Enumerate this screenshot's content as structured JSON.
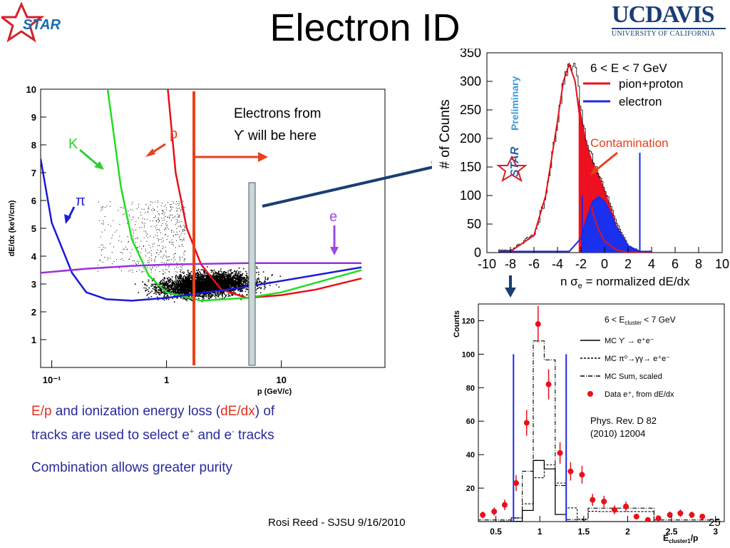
{
  "slide": {
    "title": "Electron ID",
    "footer": "Rosi Reed - SJSU 9/16/2010",
    "page_number": "25",
    "logo_star": "STAR",
    "logo_ucdavis_main": "UCDAVIS",
    "logo_ucdavis_sub": "UNIVERSITY OF CALIFORNIA",
    "text": {
      "ep": "E/p",
      "and_ion": " and ionization energy loss (",
      "dedx": "dE/dx",
      "close_of": ") of",
      "line2a": "tracks are used to select e",
      "line2b": " and e",
      "line2c": " tracks",
      "plus": "+",
      "minus": "-",
      "combination": "Combination allows greater purity"
    }
  },
  "plot1": {
    "ylabel": "dE/dx (keV/cm)",
    "xlabel": "p (GeV/c)",
    "yticks": [
      "1",
      "2",
      "3",
      "4",
      "5",
      "6",
      "7",
      "8",
      "9",
      "10"
    ],
    "xticks": [
      "10⁻¹",
      "1",
      "10"
    ],
    "annotation_upsilon_l1": "Electrons from",
    "annotation_upsilon_l2": "ϒ will be here",
    "label_p": "p",
    "label_K": "K",
    "label_pi": "π",
    "label_e": "e"
  },
  "plot2": {
    "ylabel": "# of Counts",
    "xlabel_prefix": "n σ",
    "xlabel_sub": "e",
    "xlabel_suffix": " = normalized dE/dx",
    "yticks": [
      "0",
      "50",
      "100",
      "150",
      "200",
      "250",
      "300",
      "350"
    ],
    "xticks": [
      "-10",
      "-8",
      "-6",
      "-4",
      "-2",
      "0",
      "2",
      "4",
      "6",
      "8",
      "10"
    ],
    "legend_title": "6 < E < 7 GeV",
    "legend_items": [
      "pion+proton",
      "electron"
    ],
    "preliminary": "Preliminary",
    "star": "STAR",
    "contamination": "Contamination"
  },
  "plot3": {
    "ylabel": "Counts",
    "xlabel_main": "E",
    "xlabel_sub": "cluster1",
    "xlabel_tail": "/p",
    "yticks": [
      "20",
      "40",
      "60",
      "80",
      "100",
      "120"
    ],
    "xticks": [
      "0.5",
      "1",
      "1.5",
      "2",
      "2.5",
      "3"
    ],
    "legend_title_main": "6 < E",
    "legend_title_sub": "cluster",
    "legend_title_tail": " < 7 GeV",
    "legend_items": [
      "MC ϒ → e⁺e⁻",
      "MC π⁰→γγ→ e⁺e⁻",
      "MC Sum, scaled",
      "Data e⁺, from dE/dx"
    ],
    "reference_l1": "Phys. Rev. D 82",
    "reference_l2": "(2010) 12004"
  },
  "chart_data": [
    {
      "type": "scatter",
      "title": "",
      "xlabel": "p (GeV/c)",
      "ylabel": "dE/dx (keV/cm)",
      "xscale": "log",
      "xlim": [
        0.08,
        80
      ],
      "ylim": [
        0,
        10
      ],
      "series": [
        {
          "name": "p",
          "x": [
            1.0,
            1.2,
            1.5,
            2.0,
            3.0,
            5.0,
            10,
            20,
            50
          ],
          "y": [
            10.5,
            7.0,
            5.0,
            3.7,
            2.8,
            2.5,
            2.6,
            2.8,
            3.2
          ]
        },
        {
          "name": "K",
          "x": [
            0.3,
            0.4,
            0.5,
            0.7,
            1.0,
            2.0,
            5.0,
            10,
            50
          ],
          "y": [
            10.3,
            6.5,
            4.6,
            3.3,
            2.7,
            2.4,
            2.5,
            2.7,
            3.5
          ]
        },
        {
          "name": "π",
          "x": [
            0.08,
            0.1,
            0.15,
            0.2,
            0.3,
            0.5,
            1.0,
            5.0,
            50
          ],
          "y": [
            7.5,
            5.2,
            3.4,
            2.7,
            2.45,
            2.4,
            2.5,
            2.9,
            3.6
          ]
        },
        {
          "name": "e",
          "x": [
            0.08,
            0.2,
            0.5,
            1,
            5,
            50
          ],
          "y": [
            3.4,
            3.55,
            3.65,
            3.7,
            3.75,
            3.75
          ]
        }
      ]
    },
    {
      "type": "bar",
      "title": "6 < E < 7 GeV",
      "xlabel": "n σe = normalized dE/dx",
      "ylabel": "# of Counts",
      "xlim": [
        -10,
        10
      ],
      "ylim": [
        0,
        350
      ],
      "series": [
        {
          "name": "pion+proton",
          "x": [
            -8,
            -6,
            -5,
            -4,
            -3.5,
            -3,
            -2.5,
            -2,
            -1.5,
            -1,
            -0.5,
            0,
            1,
            2
          ],
          "y": [
            2,
            30,
            100,
            230,
            300,
            330,
            300,
            220,
            130,
            70,
            40,
            20,
            5,
            0
          ]
        },
        {
          "name": "electron",
          "x": [
            -3,
            -2,
            -1.5,
            -1,
            -0.5,
            0,
            0.5,
            1,
            2,
            3
          ],
          "y": [
            2,
            25,
            60,
            90,
            98,
            90,
            70,
            45,
            12,
            2
          ]
        }
      ]
    },
    {
      "type": "bar",
      "title": "6 < Ecluster < 7 GeV",
      "xlabel": "Ecluster1/p",
      "ylabel": "Counts",
      "xlim": [
        0.3,
        3.1
      ],
      "ylim": [
        0,
        130
      ],
      "series": [
        {
          "name": "Data e⁺, from dE/dx",
          "x": [
            0.35,
            0.48,
            0.6,
            0.73,
            0.85,
            0.98,
            1.1,
            1.23,
            1.35,
            1.48,
            1.6,
            1.73,
            1.85,
            1.98,
            2.1,
            2.23,
            2.35,
            2.48,
            2.6,
            2.73,
            2.85
          ],
          "y": [
            4,
            6,
            10,
            23,
            59,
            118,
            82,
            41,
            30,
            28,
            13,
            12,
            7,
            9,
            3,
            1,
            2,
            4,
            5,
            4,
            3
          ]
        }
      ]
    }
  ]
}
